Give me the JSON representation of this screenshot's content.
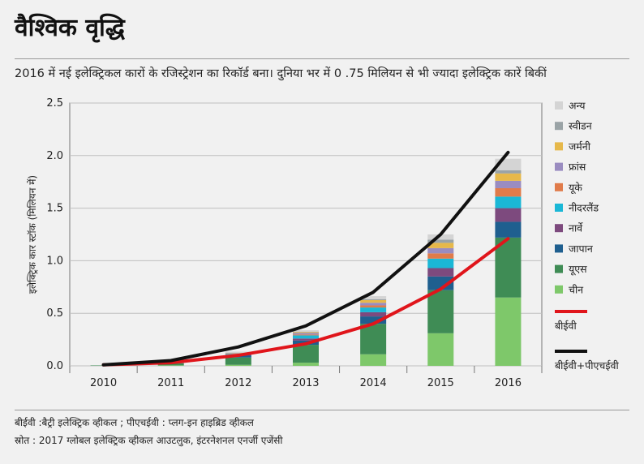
{
  "title": "वैश्विक वृद्धि",
  "subtitle": "2016 में नई इलेक्ट्रिकल कारों के रजिस्ट्रेशन का रिकॉर्ड बना। दुनिया भर में 0 .75 मिलियन से भी ज्यादा इलेक्ट्रिक कारें बिकीं",
  "notes": {
    "abbrev": "बीईवी :बैट्री इलेक्ट्रिक व्हीकल ; पीएचईवी : प्लग-इन हाइब्रिड व्हीकल",
    "source": "स्रोत : 2017 ग्लोबल इलेक्ट्रिक व्हीकल आउटलुक, इंटरनेशनल एनर्जी एजेंसी"
  },
  "chart_data": {
    "type": "bar",
    "stacked": true,
    "ylabel": "इलेक्ट्रिक कार स्टॉक (मिलियन में)",
    "xlabel": "",
    "ylim": [
      0,
      2.5
    ],
    "yticks": [
      "0.0",
      "0.5",
      "1.0",
      "1.5",
      "2.0",
      "2.5"
    ],
    "grid": true,
    "legend_position": "right",
    "categories": [
      "2010",
      "2011",
      "2012",
      "2013",
      "2014",
      "2015",
      "2016"
    ],
    "series": [
      {
        "name": "चीन",
        "color": "#7ec86a",
        "values": [
          0.0,
          0.005,
          0.01,
          0.03,
          0.11,
          0.31,
          0.65
        ]
      },
      {
        "name": "यूएस",
        "color": "#3f8c55",
        "values": [
          0.004,
          0.018,
          0.07,
          0.17,
          0.29,
          0.41,
          0.57
        ]
      },
      {
        "name": "जापान",
        "color": "#1f5f8f",
        "values": [
          0.0,
          0.002,
          0.02,
          0.04,
          0.07,
          0.13,
          0.15
        ]
      },
      {
        "name": "नार्वे",
        "color": "#7d4a7e",
        "values": [
          0.0,
          0.001,
          0.006,
          0.02,
          0.04,
          0.08,
          0.13
        ]
      },
      {
        "name": "नीदरलैंड",
        "color": "#1ab7d6",
        "values": [
          0.0,
          0.0,
          0.007,
          0.03,
          0.045,
          0.09,
          0.11
        ]
      },
      {
        "name": "यूके",
        "color": "#e07b4a",
        "values": [
          0.0,
          0.001,
          0.003,
          0.008,
          0.02,
          0.05,
          0.08
        ]
      },
      {
        "name": "फ्रांस",
        "color": "#9a8cc0",
        "values": [
          0.0,
          0.002,
          0.005,
          0.015,
          0.025,
          0.05,
          0.07
        ]
      },
      {
        "name": "जर्मनी",
        "color": "#e6b84a",
        "values": [
          0.0,
          0.001,
          0.003,
          0.008,
          0.025,
          0.05,
          0.07
        ]
      },
      {
        "name": "स्वीडन",
        "color": "#9aa3a6",
        "values": [
          0.0,
          0.0,
          0.001,
          0.003,
          0.008,
          0.03,
          0.03
        ]
      },
      {
        "name": "अन्य",
        "color": "#d4d4d4",
        "values": [
          0.0,
          0.002,
          0.01,
          0.015,
          0.03,
          0.05,
          0.11
        ]
      }
    ],
    "lines": [
      {
        "name": "बीईवी",
        "color": "#e0151b",
        "values": [
          0.01,
          0.03,
          0.1,
          0.21,
          0.4,
          0.73,
          1.21
        ]
      },
      {
        "name": "बीईवी+पीएचईवी",
        "color": "#111111",
        "values": [
          0.01,
          0.05,
          0.18,
          0.38,
          0.7,
          1.25,
          2.03
        ]
      }
    ]
  }
}
